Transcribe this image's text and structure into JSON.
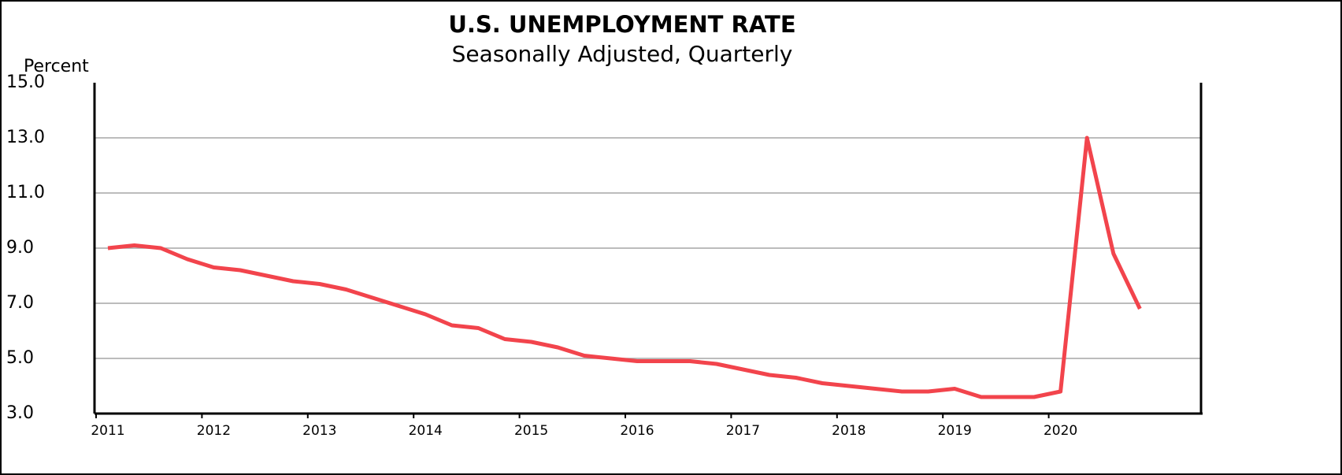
{
  "chart_data": {
    "type": "line",
    "title": "U.S. UNEMPLOYMENT RATE",
    "subtitle": "Seasonally Adjusted, Quarterly",
    "y_label": "Percent",
    "categories": [
      "2011",
      null,
      null,
      null,
      "2012",
      null,
      null,
      null,
      "2013",
      null,
      null,
      null,
      "2014",
      null,
      null,
      null,
      "2015",
      null,
      null,
      null,
      "2016",
      null,
      null,
      null,
      "2017",
      null,
      null,
      null,
      "2018",
      null,
      null,
      null,
      "2019",
      null,
      null,
      null,
      "2020",
      null,
      null,
      null
    ],
    "values": [
      9.0,
      9.1,
      9.0,
      8.6,
      8.3,
      8.2,
      8.0,
      7.8,
      7.7,
      7.5,
      7.2,
      6.9,
      6.6,
      6.2,
      6.1,
      5.7,
      5.6,
      5.4,
      5.1,
      5.0,
      4.9,
      4.9,
      4.9,
      4.8,
      4.6,
      4.4,
      4.3,
      4.1,
      4.0,
      3.9,
      3.8,
      3.8,
      3.9,
      3.6,
      3.6,
      3.6,
      3.8,
      13.0,
      8.8,
      6.8
    ],
    "color": "#f2444c",
    "ylim": [
      3,
      15
    ],
    "yticks": [
      {
        "value": 3,
        "label": "3.0"
      },
      {
        "value": 5,
        "label": "5.0"
      },
      {
        "value": 7,
        "label": "7.0"
      },
      {
        "value": 9,
        "label": "9.0"
      },
      {
        "value": 11,
        "label": "11.0"
      },
      {
        "value": 13,
        "label": "13.0"
      },
      {
        "value": 15,
        "label": "15.0"
      }
    ],
    "grid": true
  }
}
